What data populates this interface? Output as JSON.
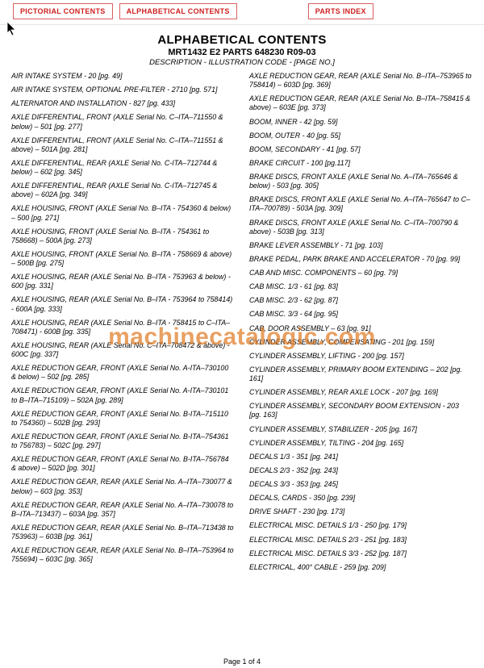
{
  "nav": {
    "pictorial": "PICTORIAL CONTENTS",
    "alphabetical": "ALPHABETICAL CONTENTS",
    "parts_index": "PARTS INDEX"
  },
  "heading": {
    "title": "ALPHABETICAL CONTENTS",
    "subtitle": "MRT1432 E2 PARTS 648230 R09-03",
    "desc": "DESCRIPTION - ILLUSTRATION CODE - [PAGE NO.]"
  },
  "watermark": "machinecatalogic.com",
  "footer": "Page 1 of 4",
  "left": [
    "AIR INTAKE SYSTEM - 20 [pg. 49]",
    "AIR INTAKE SYSTEM, OPTIONAL PRE-FILTER - 2710 [pg. 571]",
    "ALTERNATOR AND INSTALLATION - 827 [pg. 433]",
    "AXLE DIFFERENTIAL, FRONT (AXLE Serial No. C–ITA–711550 & below) – 501 [pg. 277]",
    "AXLE DIFFERENTIAL, FRONT (AXLE Serial No. C–ITA–711551 & above) – 501A [pg. 281]",
    "AXLE DIFFERENTIAL, REAR (AXLE Serial No. C-ITA–712744 & below) – 602 [pg. 345]",
    "AXLE DIFFERENTIAL, REAR (AXLE Serial No. C-ITA–712745 & above) – 602A [pg. 349]",
    "AXLE HOUSING, FRONT (AXLE Serial No. B–ITA - 754360 & below) – 500 [pg. 271]",
    "AXLE HOUSING, FRONT (AXLE Serial No. B–ITA - 754361 to 758668) – 500A [pg. 273]",
    "AXLE HOUSING, FRONT (AXLE Serial No. B–ITA - 758669 & above) – 500B [pg. 275]",
    "AXLE HOUSING, REAR (AXLE Serial No. B–ITA - 753963 & below) - 600 [pg. 331]",
    "AXLE HOUSING, REAR (AXLE Serial No. B–ITA - 753964 to 758414) - 600A [pg. 333]",
    "AXLE HOUSING, REAR (AXLE Serial No. B–ITA - 758415 to C–ITA–708471) - 600B [pg. 335]",
    "AXLE HOUSING, REAR (AXLE Serial No. C–ITA–708472 & above) - 600C [pg. 337]",
    "AXLE REDUCTION GEAR, FRONT (AXLE Serial No. A-ITA–730100 & below) – 502 [pg. 285]",
    "AXLE REDUCTION GEAR, FRONT (AXLE Serial No. A-ITA–730101 to B–ITA–715109) – 502A [pg. 289]",
    "AXLE REDUCTION GEAR, FRONT (AXLE Serial No. B-ITA–715110 to 754360) – 502B [pg. 293]",
    "AXLE REDUCTION GEAR, FRONT (AXLE Serial No. B-ITA–754361 to 756783) – 502C [pg. 297]",
    "AXLE REDUCTION GEAR, FRONT (AXLE Serial No. B-ITA–756784 & above) – 502D [pg. 301]",
    "AXLE REDUCTION GEAR, REAR (AXLE Serial No. A–ITA–730077 & below) – 603 [pg. 353]",
    "AXLE REDUCTION GEAR, REAR (AXLE Serial No. A–ITA–730078 to B–ITA–713437) – 603A [pg. 357]",
    "AXLE REDUCTION GEAR, REAR (AXLE Serial No. B–ITA–713438 to 753963) – 603B [pg. 361]",
    "AXLE REDUCTION GEAR, REAR (AXLE Serial No. B–ITA–753964 to 755694) – 603C [pg. 365]"
  ],
  "right": [
    "AXLE REDUCTION GEAR, REAR (AXLE Serial No. B–ITA–753965 to 758414) – 603D [pg. 369]",
    "AXLE REDUCTION GEAR, REAR (AXLE Serial No. B–ITA–758415 & above) – 603E [pg. 373]",
    "BOOM, INNER - 42 [pg. 59]",
    "BOOM, OUTER - 40 [pg. 55]",
    "BOOM, SECONDARY - 41 [pg. 57]",
    "BRAKE CIRCUIT - 100 [pg.117]",
    "BRAKE DISCS, FRONT AXLE  (AXLE Serial No. A–ITA–765646 & below) - 503 [pg. 305]",
    "BRAKE DISCS, FRONT AXLE  (AXLE Serial No. A–ITA–765647 to C–ITA–700789) - 503A [pg. 309]",
    "BRAKE DISCS, FRONT AXLE  (AXLE Serial No. C–ITA–700790 & above) - 503B [pg. 313]",
    "BRAKE LEVER ASSEMBLY - 71 [pg. 103]",
    "BRAKE PEDAL, PARK BRAKE AND ACCELERATOR - 70 [pg. 99]",
    "CAB AND MISC. COMPONENTS – 60 [pg. 79]",
    "CAB MISC. 1/3 - 61 [pg. 83]",
    "CAB MISC. 2/3 - 62 [pg. 87]",
    "CAB MISC. 3/3 - 64 [pg. 95]",
    "CAB, DOOR ASSEMBLY – 63 [pg. 91]",
    "CYLINDER ASSEMBLY, COMPENSATING - 201 [pg. 159]",
    "CYLINDER ASSEMBLY, LIFTING - 200 [pg. 157]",
    "CYLINDER ASSEMBLY, PRIMARY BOOM EXTENDING – 202 [pg. 161]",
    "CYLINDER ASSEMBLY, REAR AXLE LOCK  - 207 [pg. 169]",
    "CYLINDER ASSEMBLY, SECONDARY BOOM EXTENSION - 203 [pg. 163]",
    "CYLINDER ASSEMBLY, STABILIZER - 205 [pg. 167]",
    "CYLINDER ASSEMBLY, TILTING - 204 [pg. 165]",
    "DECALS 1/3 - 351 [pg. 241]",
    "DECALS 2/3 - 352 [pg. 243]",
    "DECALS 3/3 - 353 [pg. 245]",
    "DECALS, CARDS - 350 [pg. 239]",
    "DRIVE SHAFT - 230 [pg. 173]",
    "ELECTRICAL MISC. DETAILS 1/3 - 250 [pg. 179]",
    "ELECTRICAL MISC. DETAILS 2/3 - 251 [pg. 183]",
    "ELECTRICAL MISC. DETAILS 3/3 - 252 [pg. 187]",
    "ELECTRICAL, 400° CABLE - 259 [pg. 209]"
  ]
}
